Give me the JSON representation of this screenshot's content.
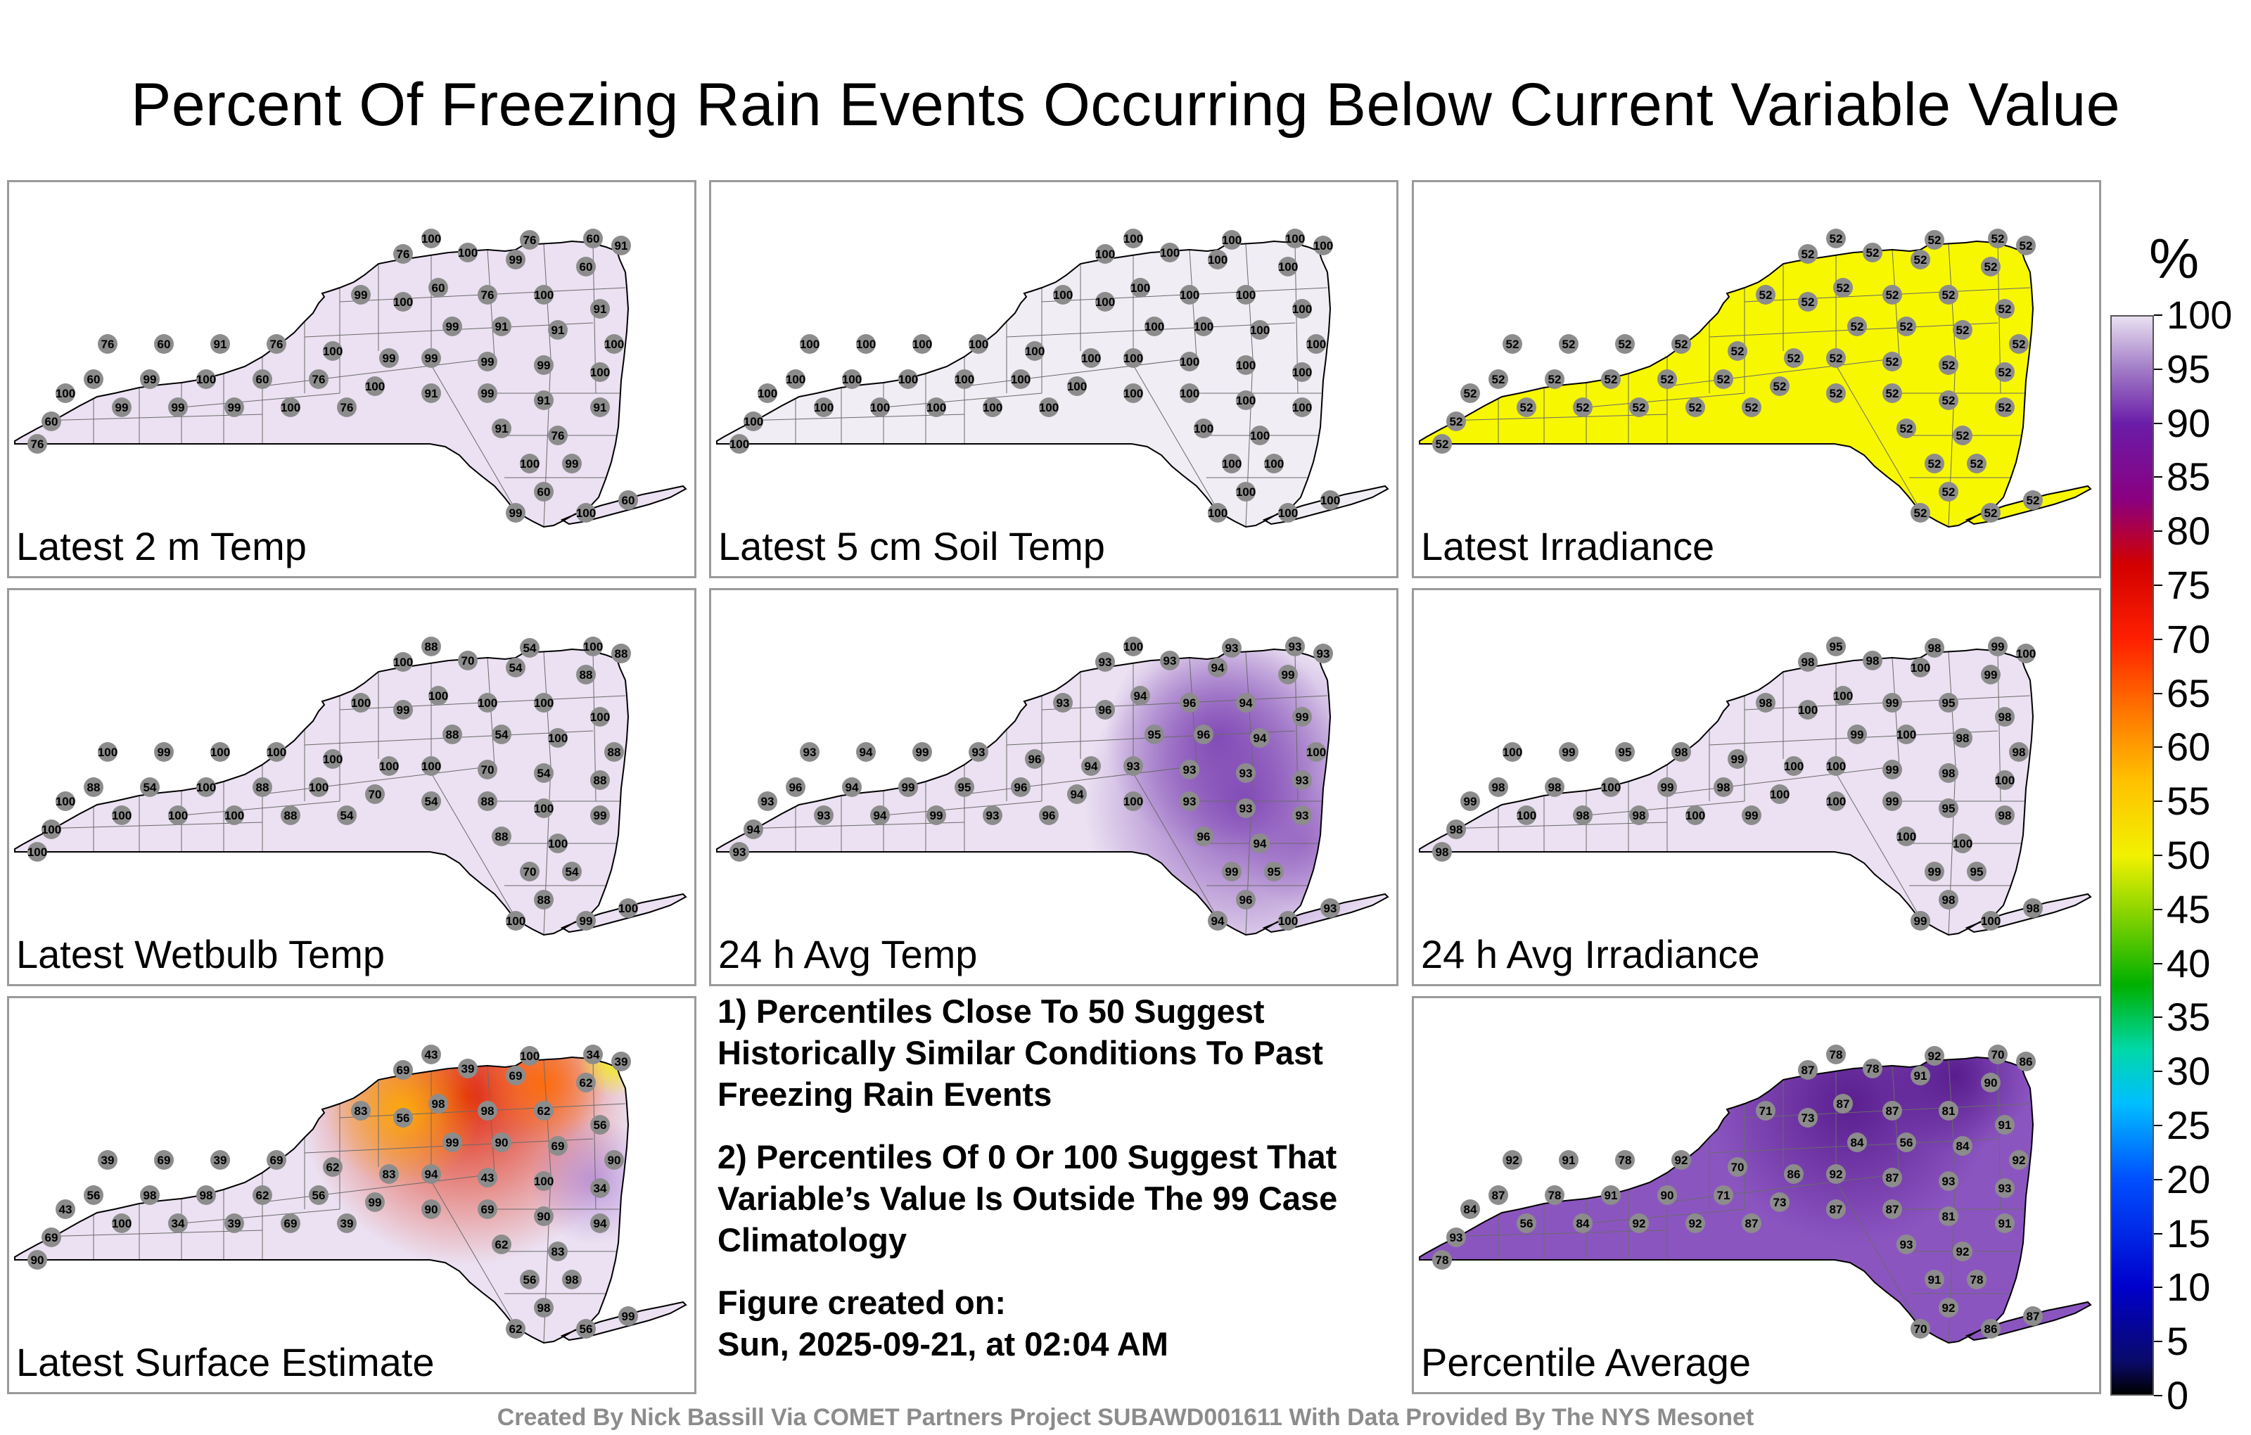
{
  "title": "Percent Of Freezing Rain Events Occurring Below Current Variable Value",
  "panels": [
    {
      "label": "Latest 2 m Temp",
      "style": "lavender",
      "stations": [
        "100",
        "76",
        "60",
        "91",
        "76",
        "100",
        "99",
        "60",
        "99",
        "100",
        "60",
        "76",
        "100",
        "91",
        "99",
        "91",
        "91",
        "100",
        "99",
        "99",
        "99"
      ]
    },
    {
      "label": "Latest 5 cm Soil Temp",
      "style": "white",
      "stations": [
        "100",
        "100",
        "100",
        "100",
        "100",
        "100",
        "100",
        "100",
        "100",
        "100",
        "100",
        "100",
        "100",
        "100",
        "100",
        "100"
      ]
    },
    {
      "label": "Latest Irradiance",
      "style": "yellow",
      "stations": [
        "52",
        "52",
        "52",
        "52",
        "52",
        "52",
        "52",
        "52",
        "52",
        "52",
        "52",
        "52",
        "52",
        "52",
        "52",
        "52"
      ]
    },
    {
      "label": "Latest Wetbulb Temp",
      "style": "lavender",
      "stations": [
        "88",
        "54",
        "100",
        "88",
        "100",
        "70",
        "54",
        "88",
        "100",
        "99",
        "100",
        "100",
        "100",
        "100"
      ]
    },
    {
      "label": "24 h Avg Temp",
      "style": "purple-light",
      "stations": [
        "100",
        "93",
        "93",
        "93",
        "93",
        "93",
        "94",
        "99",
        "93",
        "96",
        "94",
        "96",
        "94",
        "99",
        "95",
        "96",
        "94"
      ]
    },
    {
      "label": "24 h Avg Irradiance",
      "style": "lavender",
      "stations": [
        "95",
        "98",
        "99",
        "100",
        "98",
        "98",
        "100",
        "99",
        "98",
        "100",
        "100",
        "99"
      ]
    },
    {
      "label": "Latest Surface Estimate",
      "style": "hot",
      "stations": [
        "43",
        "100",
        "34",
        "39",
        "69",
        "39",
        "69",
        "62",
        "83",
        "56",
        "98",
        "98",
        "62",
        "56",
        "99",
        "90",
        "69",
        "90",
        "94"
      ]
    },
    {
      "label": "Percentile Average",
      "style": "purple",
      "stations": [
        "78",
        "92",
        "70",
        "86",
        "87",
        "78",
        "91",
        "90",
        "71",
        "73",
        "87",
        "87",
        "81",
        "91",
        "84",
        "56",
        "84",
        "92",
        "92",
        "87",
        "93",
        "93",
        "92",
        "91"
      ]
    }
  ],
  "notes": {
    "note1": "1) Percentiles Close To 50 Suggest Historically Similar Conditions To Past Freezing Rain Events",
    "note2": "2) Percentiles Of 0 Or 100 Suggest That Variable’s Value Is Outside The 99 Case Climatology",
    "created_label": "Figure created on:",
    "created_value": "Sun, 2025-09-21, at 02:04 AM"
  },
  "colorbar": {
    "unit": "%",
    "ticks": [
      "100",
      "95",
      "90",
      "85",
      "80",
      "75",
      "70",
      "65",
      "60",
      "55",
      "50",
      "45",
      "40",
      "35",
      "30",
      "25",
      "20",
      "15",
      "10",
      "5",
      "0"
    ]
  },
  "credit": "Created By Nick Bassill Via COMET Partners Project SUBAWD001611 With Data Provided By The NYS Mesonet"
}
